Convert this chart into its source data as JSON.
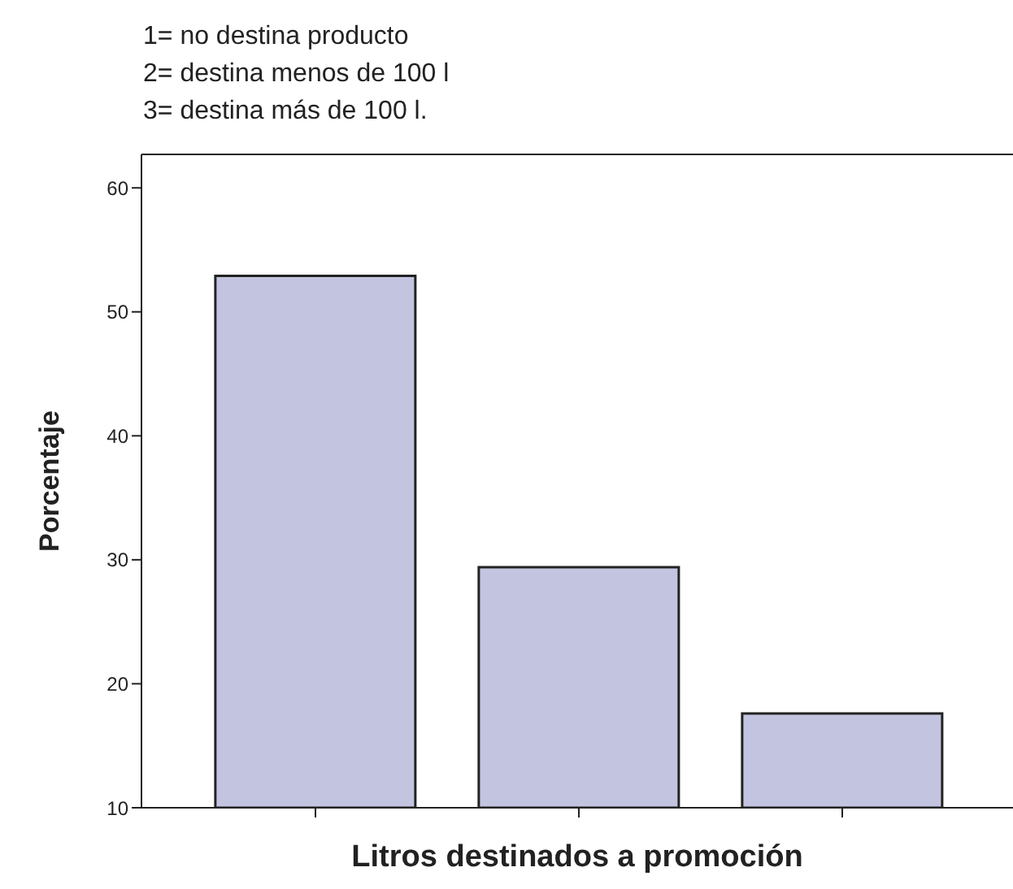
{
  "chart_data": {
    "type": "bar",
    "annotations": [
      "1= no destina producto",
      "2= destina menos de 100 l",
      "3= destina más de 100 l."
    ],
    "xlabel": "Litros destinados a promoción",
    "ylabel": "Porcentaje",
    "categories": [
      null,
      null,
      null
    ],
    "values": [
      52.9,
      29.4,
      17.6
    ],
    "color": "#c3c4e0",
    "ylim": [
      10,
      62.7
    ],
    "yticks": [
      10,
      20,
      30,
      40,
      50,
      60
    ],
    "grid": false,
    "legend": false
  }
}
